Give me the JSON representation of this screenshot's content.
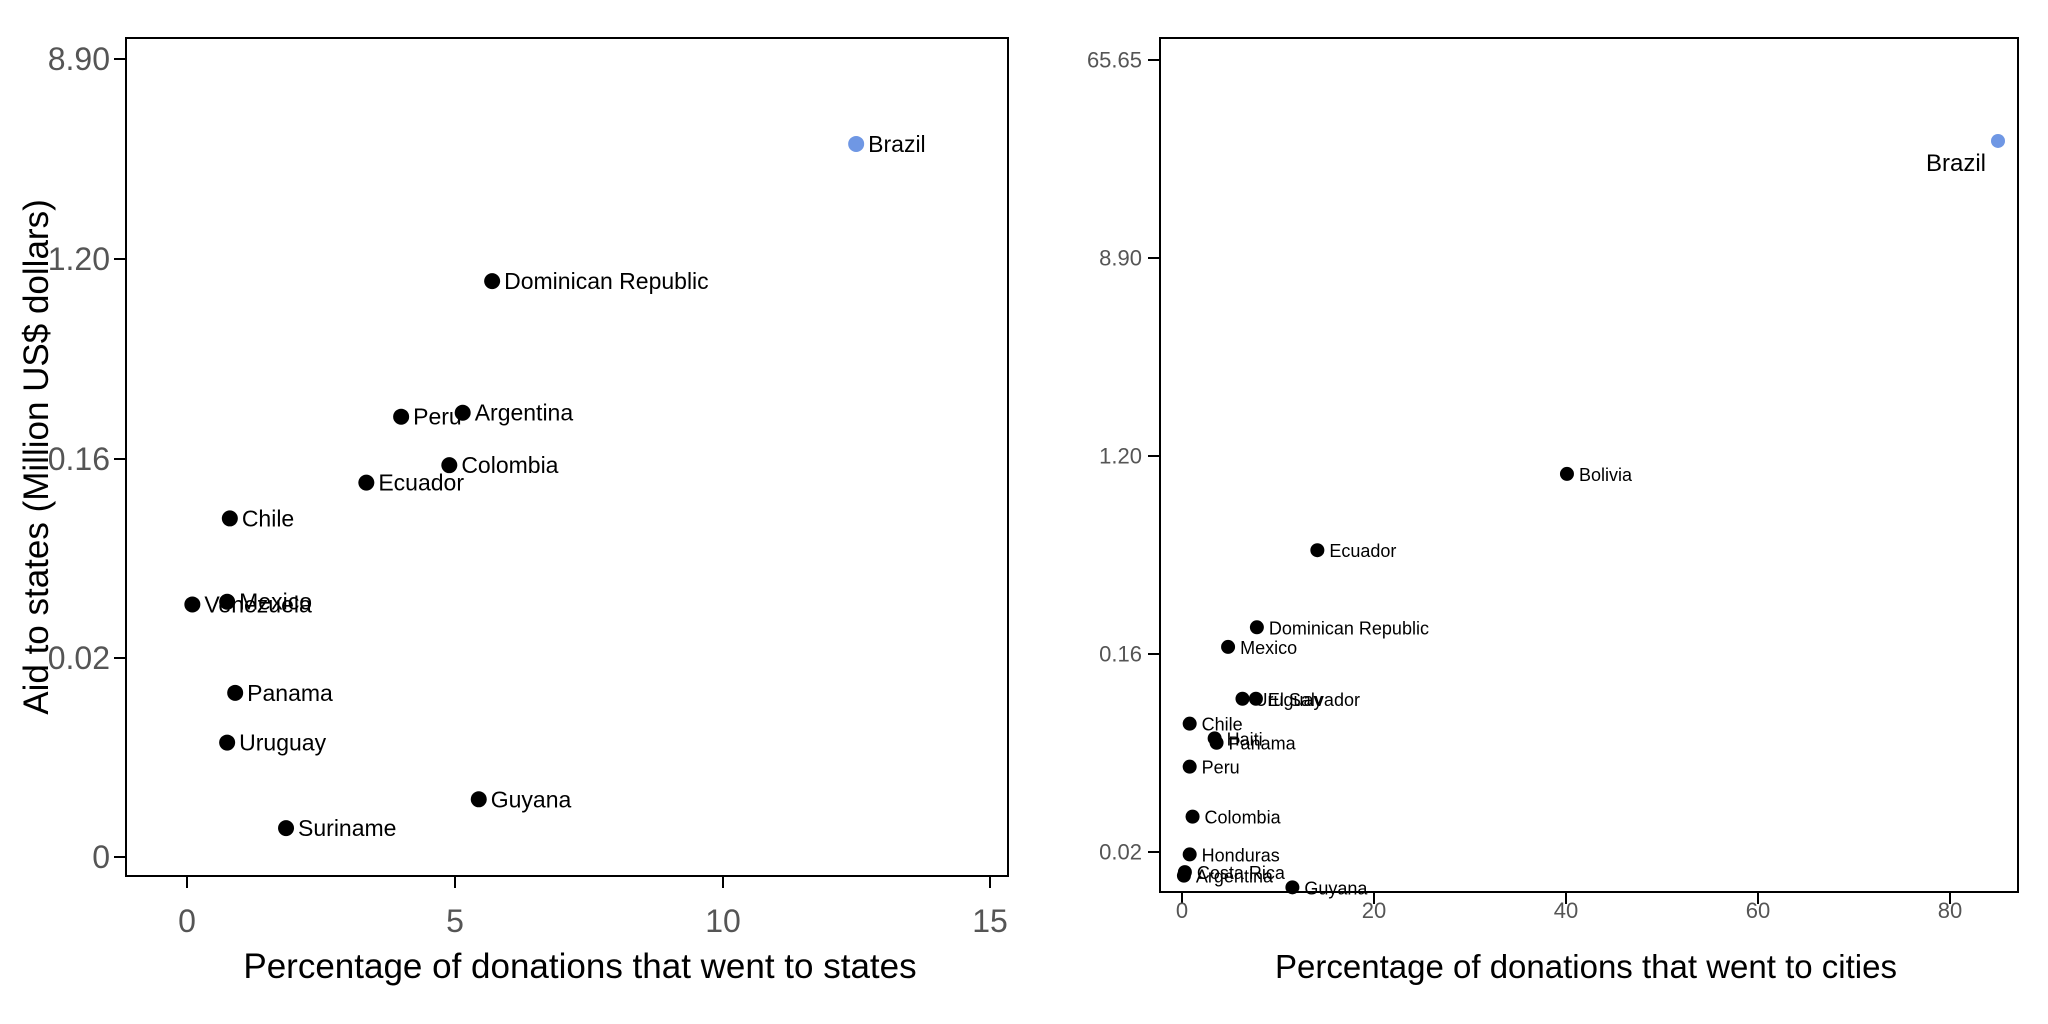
{
  "chart_data": [
    {
      "type": "scatter",
      "xlabel": "Percentage of donations that went to states",
      "ylabel": "Aid to states (Million US$ dollars)",
      "x_ticks": [
        "0",
        "5",
        "10",
        "15"
      ],
      "x_tick_values": [
        0,
        5,
        10,
        15
      ],
      "y_ticks": [
        "0",
        "0.02",
        "0.16",
        "1.20",
        "8.90"
      ],
      "y_scale": "log-like (ticks equally spaced: 0, 0.02, 0.16, 1.20, 8.90)",
      "grid": false,
      "highlight_color": "#6f97e4",
      "point_color": "#000000",
      "points": [
        {
          "label": "Brazil",
          "x": 12.5,
          "y": 3.8,
          "highlight": true
        },
        {
          "label": "Dominican Republic",
          "x": 5.7,
          "y": 0.96
        },
        {
          "label": "Peru",
          "x": 4.0,
          "y": 0.245
        },
        {
          "label": "Argentina",
          "x": 5.15,
          "y": 0.255
        },
        {
          "label": "Colombia",
          "x": 4.9,
          "y": 0.15
        },
        {
          "label": "Ecuador",
          "x": 3.35,
          "y": 0.125
        },
        {
          "label": "Chile",
          "x": 0.8,
          "y": 0.086
        },
        {
          "label": "Mexico",
          "x": 0.75,
          "y": 0.036
        },
        {
          "label": "Venezuela",
          "x": 0.1,
          "y": 0.035
        },
        {
          "label": "Panama",
          "x": 0.9,
          "y": 0.0165
        },
        {
          "label": "Uruguay",
          "x": 0.75,
          "y": 0.0115
        },
        {
          "label": "Guyana",
          "x": 5.45,
          "y": 0.0058
        },
        {
          "label": "Suriname",
          "x": 1.85,
          "y": 0.0029
        }
      ]
    },
    {
      "type": "scatter",
      "xlabel": "Percentage of donations that went to cities",
      "ylabel": "",
      "x_ticks": [
        "0",
        "20",
        "40",
        "60",
        "80"
      ],
      "x_tick_values": [
        0,
        20,
        40,
        60,
        80
      ],
      "y_ticks": [
        "0.02",
        "0.16",
        "1.20",
        "8.90",
        "65.65"
      ],
      "y_scale": "log",
      "grid": false,
      "highlight_color": "#6f97e4",
      "point_color": "#000000",
      "points": [
        {
          "label": "Brazil",
          "x": 85,
          "y": 29,
          "highlight": true
        },
        {
          "label": "Bolivia",
          "x": 40.1,
          "y": 1.0
        },
        {
          "label": "Ecuador",
          "x": 14.1,
          "y": 0.46
        },
        {
          "label": "Dominican Republic",
          "x": 7.8,
          "y": 0.21
        },
        {
          "label": "Mexico",
          "x": 4.8,
          "y": 0.172
        },
        {
          "label": "El Salvador",
          "x": 7.7,
          "y": 0.1
        },
        {
          "label": "Uruguay",
          "x": 6.3,
          "y": 0.1
        },
        {
          "label": "Chile",
          "x": 0.8,
          "y": 0.077
        },
        {
          "label": "Haiti",
          "x": 3.4,
          "y": 0.066
        },
        {
          "label": "Panama",
          "x": 3.6,
          "y": 0.063
        },
        {
          "label": "Peru",
          "x": 0.8,
          "y": 0.049
        },
        {
          "label": "Colombia",
          "x": 1.1,
          "y": 0.029
        },
        {
          "label": "Honduras",
          "x": 0.8,
          "y": 0.0195
        },
        {
          "label": "Costa Rica",
          "x": 0.3,
          "y": 0.0162
        },
        {
          "label": "Argentina",
          "x": 0.2,
          "y": 0.0156
        },
        {
          "label": "Guyana",
          "x": 11.5,
          "y": 0.0138
        }
      ]
    }
  ]
}
